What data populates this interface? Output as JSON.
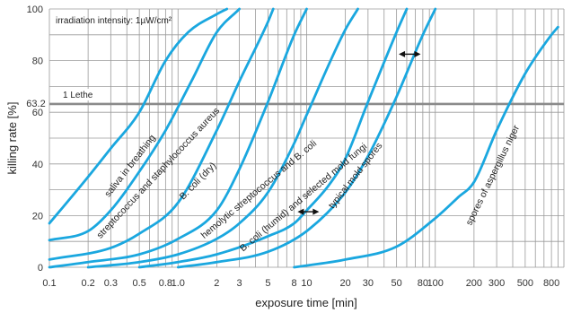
{
  "chart_data": {
    "type": "line",
    "title": "",
    "xlabel": "exposure time [min]",
    "ylabel": "killing rate [%]",
    "xscale": "log",
    "xlim": [
      0.1,
      1000
    ],
    "ylim": [
      0,
      100
    ],
    "grid": true,
    "x_tick_labels": [
      "0.1",
      "0.2",
      "0.3",
      "0.5",
      "0.8",
      "1.0",
      "2",
      "3",
      "5",
      "8",
      "10",
      "20",
      "30",
      "50",
      "80",
      "100",
      "200",
      "300",
      "500",
      "800"
    ],
    "x_tick_values": [
      0.1,
      0.2,
      0.3,
      0.5,
      0.8,
      1.0,
      2,
      3,
      5,
      8,
      10,
      20,
      30,
      50,
      80,
      100,
      200,
      300,
      500,
      800
    ],
    "y_ticks": [
      0,
      20,
      40,
      60,
      80,
      100
    ],
    "y_tick_labels": [
      "0",
      "20",
      "40",
      "60",
      "80",
      "100"
    ],
    "reference_line": {
      "y": 63.2,
      "label": "1 Lethe",
      "value_label": "63.2"
    },
    "annotation": "irradiation intensity: 1µW/cm²",
    "series": [
      {
        "label": "saliva in breathing",
        "points": [
          [
            0.1,
            17
          ],
          [
            0.2,
            35
          ],
          [
            0.3,
            46
          ],
          [
            0.5,
            60
          ],
          [
            0.8,
            80
          ],
          [
            1.2,
            91
          ],
          [
            2,
            98
          ],
          [
            2.4,
            100
          ]
        ]
      },
      {
        "label": "streptococcus and staphylococcus aureus",
        "points": [
          [
            0.1,
            10.5
          ],
          [
            0.2,
            14
          ],
          [
            0.3,
            22
          ],
          [
            0.5,
            37
          ],
          [
            0.8,
            53
          ],
          [
            1.3,
            73
          ],
          [
            2,
            91
          ],
          [
            3,
            100
          ]
        ]
      },
      {
        "label": "B. coli (dry)",
        "points": [
          [
            0.1,
            3
          ],
          [
            0.3,
            7.5
          ],
          [
            0.5,
            13
          ],
          [
            1.0,
            25
          ],
          [
            2,
            53
          ],
          [
            3,
            72
          ],
          [
            5,
            95
          ],
          [
            5.5,
            100
          ]
        ]
      },
      {
        "label": "hemolytic streptococcus and B. coli",
        "points": [
          [
            0.1,
            0
          ],
          [
            0.2,
            2
          ],
          [
            0.5,
            5
          ],
          [
            1.0,
            11
          ],
          [
            2,
            22
          ],
          [
            3,
            38
          ],
          [
            5,
            64
          ],
          [
            8,
            90
          ],
          [
            10,
            100
          ]
        ]
      },
      {
        "label": "B. coli (humid) and selected mold fungi",
        "points": [
          [
            0.2,
            0
          ],
          [
            0.5,
            2
          ],
          [
            1.0,
            5
          ],
          [
            2,
            11
          ],
          [
            3,
            17
          ],
          [
            5,
            29
          ],
          [
            8,
            48
          ],
          [
            10,
            59
          ],
          [
            20,
            92
          ],
          [
            25,
            100
          ]
        ]
      },
      {
        "label": "typical mold spores",
        "points": [
          [
            0.5,
            0
          ],
          [
            1.0,
            2
          ],
          [
            2,
            5
          ],
          [
            5,
            12
          ],
          [
            8,
            17
          ],
          [
            10,
            22
          ],
          [
            15,
            32
          ],
          [
            20,
            42
          ],
          [
            30,
            64
          ],
          [
            50,
            91
          ],
          [
            60,
            100
          ]
        ]
      },
      {
        "label": "",
        "points": [
          [
            1.0,
            0
          ],
          [
            2,
            2
          ],
          [
            5,
            6
          ],
          [
            10,
            14
          ],
          [
            20,
            29
          ],
          [
            30,
            43
          ],
          [
            50,
            66
          ],
          [
            80,
            90
          ],
          [
            100,
            100
          ]
        ]
      },
      {
        "label": "",
        "points": [
          [
            8,
            0
          ],
          [
            20,
            3
          ],
          [
            50,
            8
          ],
          [
            100,
            19
          ],
          [
            150,
            27
          ],
          [
            200,
            33
          ],
          [
            300,
            53
          ],
          [
            500,
            75
          ],
          [
            800,
            90
          ],
          [
            900,
            93
          ]
        ]
      },
      {
        "label": "spores of aspergillus niger",
        "points": []
      }
    ],
    "arrows": [
      {
        "from": [
          8.5,
          21.5
        ],
        "to": [
          12.5,
          21.5
        ]
      },
      {
        "from": [
          52,
          82.5
        ],
        "to": [
          77,
          82.5
        ]
      }
    ]
  }
}
